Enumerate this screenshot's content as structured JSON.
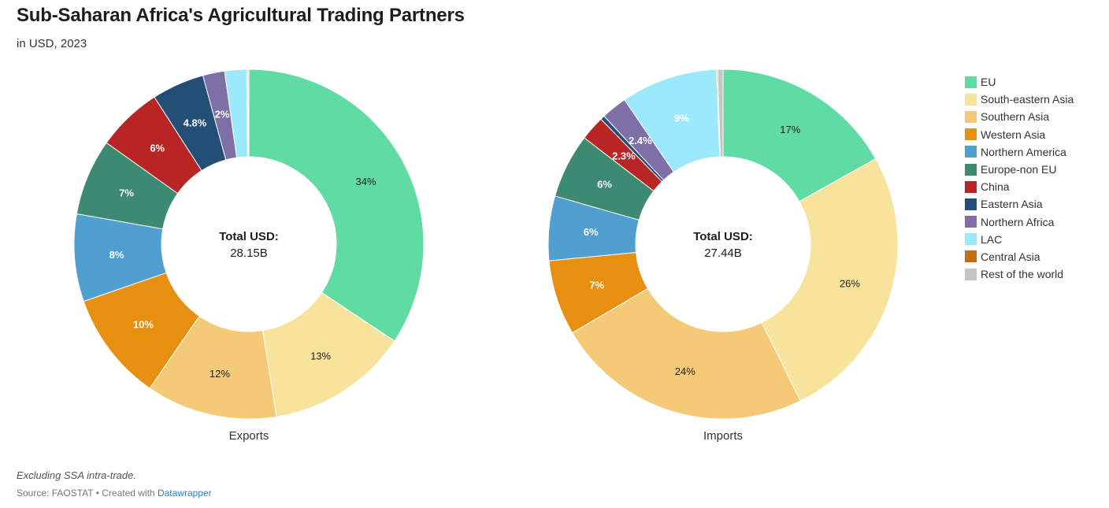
{
  "title": "Sub-Saharan Africa's Agricultural Trading Partners",
  "subtitle": "in USD, 2023",
  "note": "Excluding SSA intra-trade.",
  "source": {
    "prefix": "Source: FAOSTAT • Created with ",
    "link": "Datawrapper"
  },
  "chart_data": [
    {
      "type": "pie",
      "donut": true,
      "title": "Exports",
      "center_label": "Total USD:",
      "center_value": "28.15B",
      "slices": [
        {
          "name": "EU",
          "value": 34,
          "label": "34%"
        },
        {
          "name": "South-eastern Asia",
          "value": 13,
          "label": "13%"
        },
        {
          "name": "Southern Asia",
          "value": 12,
          "label": "12%"
        },
        {
          "name": "Western Asia",
          "value": 10,
          "label": "10%"
        },
        {
          "name": "Northern America",
          "value": 8,
          "label": "8%"
        },
        {
          "name": "Europe-non EU",
          "value": 7,
          "label": "7%"
        },
        {
          "name": "China",
          "value": 6,
          "label": "6%"
        },
        {
          "name": "Eastern Asia",
          "value": 4.8,
          "label": "4.8%"
        },
        {
          "name": "Northern Africa",
          "value": 2,
          "label": "2%"
        },
        {
          "name": "LAC",
          "value": 2,
          "label": ""
        },
        {
          "name": "Central Asia",
          "value": 0.1,
          "label": ""
        },
        {
          "name": "Rest of the world",
          "value": 0.1,
          "label": ""
        }
      ]
    },
    {
      "type": "pie",
      "donut": true,
      "title": "Imports",
      "center_label": "Total USD:",
      "center_value": "27.44B",
      "slices": [
        {
          "name": "EU",
          "value": 17,
          "label": "17%"
        },
        {
          "name": "South-eastern Asia",
          "value": 26,
          "label": "26%"
        },
        {
          "name": "Southern Asia",
          "value": 24,
          "label": "24%"
        },
        {
          "name": "Western Asia",
          "value": 7,
          "label": "7%"
        },
        {
          "name": "Northern America",
          "value": 6,
          "label": "6%"
        },
        {
          "name": "Europe-non EU",
          "value": 6,
          "label": "6%"
        },
        {
          "name": "China",
          "value": 2.3,
          "label": "2.3%"
        },
        {
          "name": "Eastern Asia",
          "value": 0.4,
          "label": ""
        },
        {
          "name": "Northern Africa",
          "value": 2.4,
          "label": "2.4%"
        },
        {
          "name": "LAC",
          "value": 9,
          "label": "9%"
        },
        {
          "name": "Central Asia",
          "value": 0.1,
          "label": ""
        },
        {
          "name": "Rest of the world",
          "value": 0.5,
          "label": ""
        }
      ]
    }
  ],
  "legend": [
    {
      "name": "EU",
      "color": "#5fdba3"
    },
    {
      "name": "South-eastern Asia",
      "color": "#f8e39c"
    },
    {
      "name": "Southern Asia",
      "color": "#f4ca79"
    },
    {
      "name": "Western Asia",
      "color": "#e78f10"
    },
    {
      "name": "Northern America",
      "color": "#4f9fd0"
    },
    {
      "name": "Europe-non EU",
      "color": "#3c8a72"
    },
    {
      "name": "China",
      "color": "#b82525"
    },
    {
      "name": "Eastern Asia",
      "color": "#234f77"
    },
    {
      "name": "Northern Africa",
      "color": "#7e70a6"
    },
    {
      "name": "LAC",
      "color": "#9de9fc"
    },
    {
      "name": "Central Asia",
      "color": "#c46d12"
    },
    {
      "name": "Rest of the world",
      "color": "#c5c5c5"
    }
  ],
  "label_colors": {
    "dark": "#1d1d1d",
    "light": "#ffffff"
  }
}
